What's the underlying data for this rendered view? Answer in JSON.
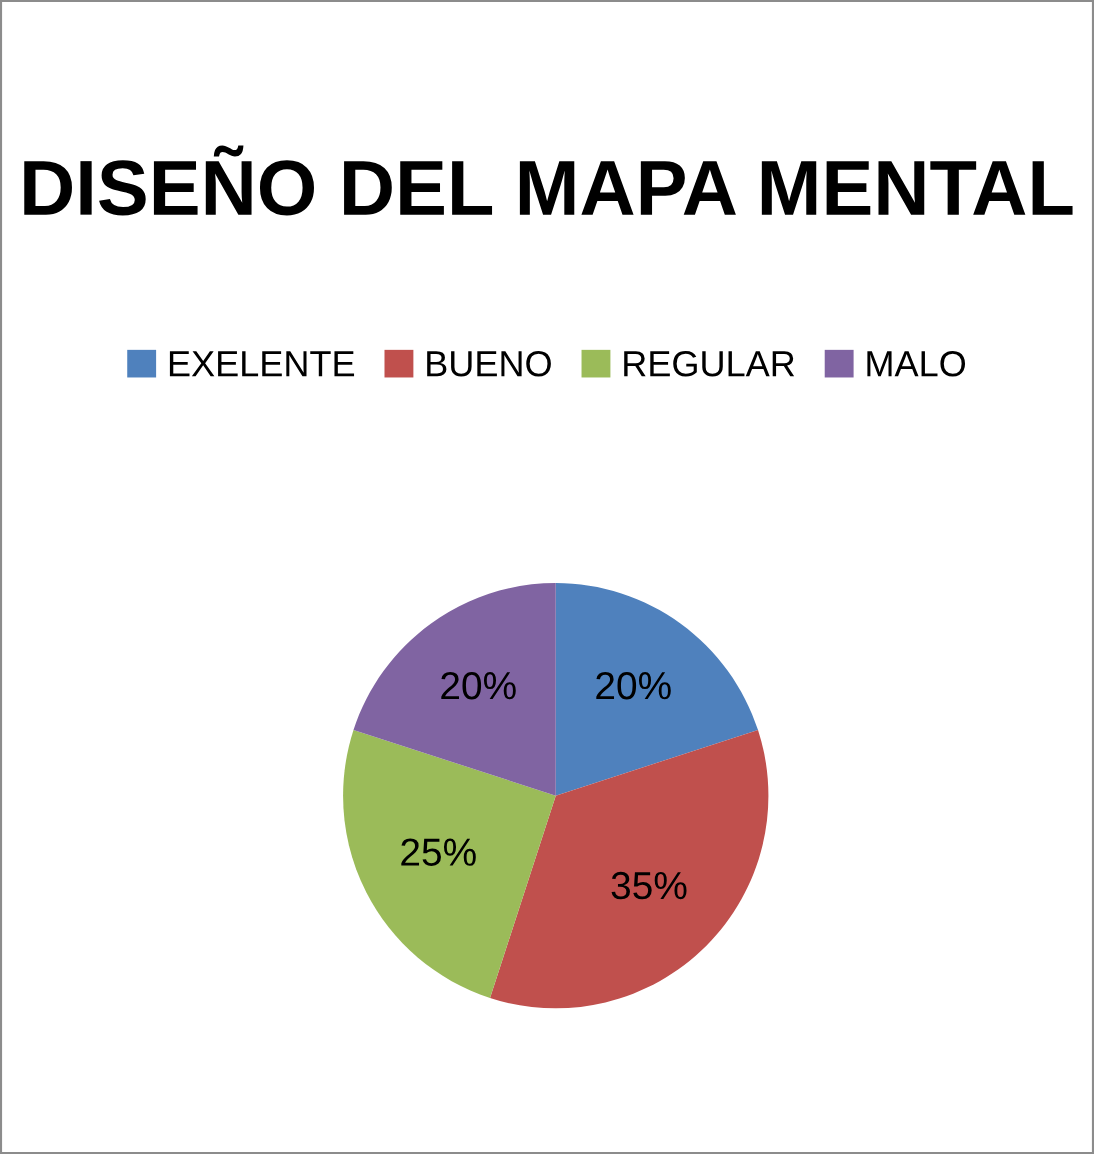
{
  "chart_data": {
    "type": "pie",
    "title": "DISEÑO DEL MAPA MENTAL",
    "categories": [
      "EXELENTE",
      "BUENO",
      "REGULAR",
      "MALO"
    ],
    "values": [
      20,
      35,
      25,
      20
    ],
    "colors": [
      "#4f81bd",
      "#c0504d",
      "#9bbb59",
      "#8064a2"
    ],
    "value_labels": [
      "20%",
      "35%",
      "25%",
      "20%"
    ],
    "legend": "top"
  }
}
